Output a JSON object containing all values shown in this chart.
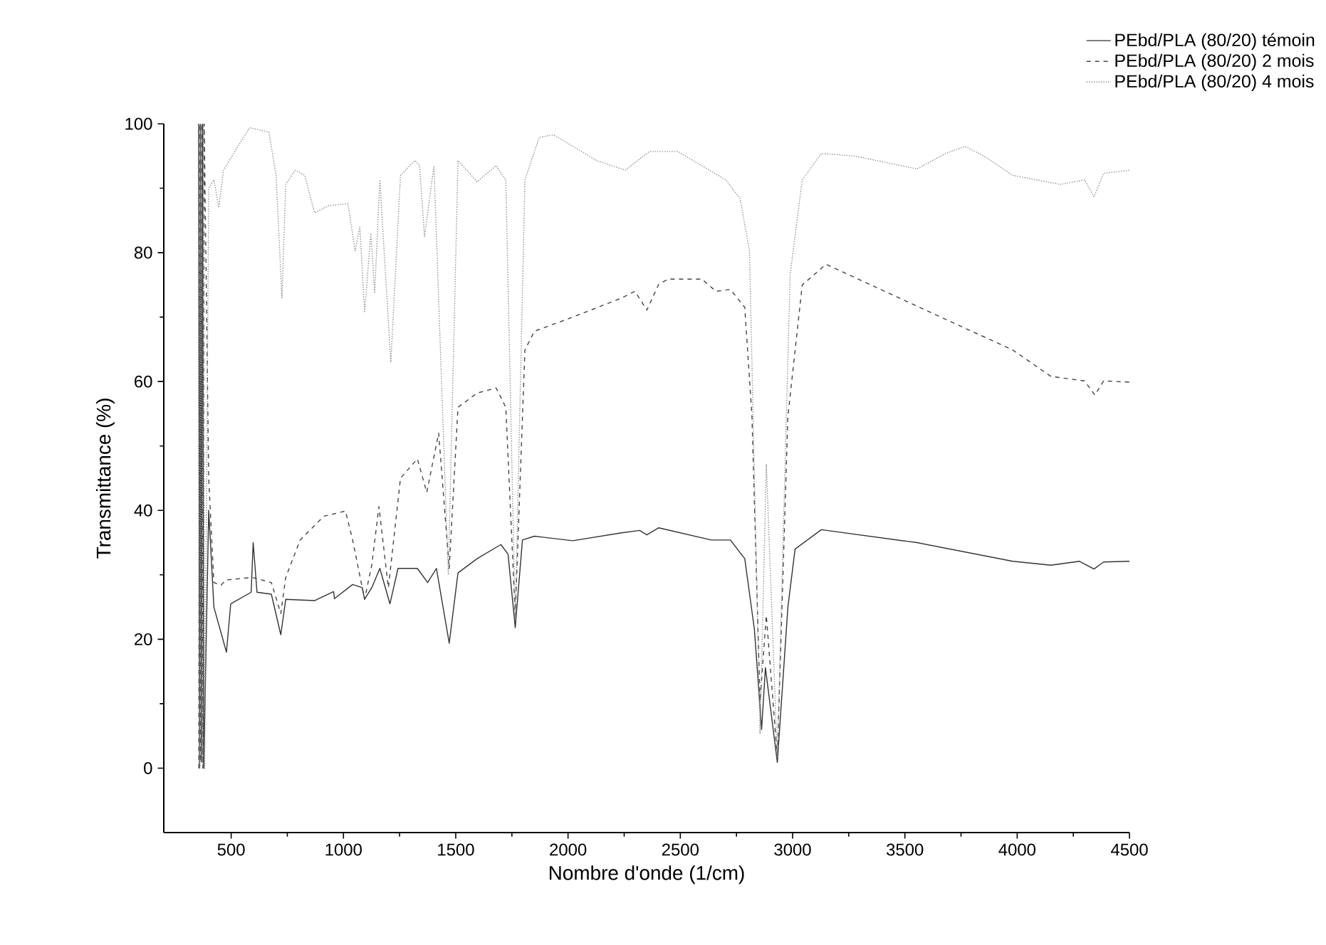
{
  "chart_data": {
    "type": "line",
    "xlabel": "Nombre d'onde (1/cm)",
    "ylabel": "Transmittance (%)",
    "xlim": [
      200,
      4500
    ],
    "ylim": [
      -10,
      100
    ],
    "xticks": [
      500,
      1000,
      1500,
      2000,
      2500,
      3000,
      3500,
      4000,
      4500
    ],
    "yticks": [
      0,
      20,
      40,
      60,
      80,
      100
    ],
    "legend": "top right",
    "grid": false,
    "series": [
      {
        "name": "PEbd/PLA (80/20) témoin",
        "color": "#333333",
        "line_style": "solid",
        "x": [
          355,
          359,
          363,
          367,
          372,
          378,
          400,
          423,
          479,
          498,
          589,
          598,
          615,
          679,
          721,
          743,
          871,
          956,
          960,
          1041,
          1084,
          1094,
          1126,
          1162,
          1207,
          1243,
          1329,
          1375,
          1414,
          1471,
          1510,
          1595,
          1701,
          1733,
          1765,
          1797,
          1850,
          2021,
          2234,
          2319,
          2351,
          2404,
          2638,
          2723,
          2787,
          2830,
          2862,
          2879,
          2932,
          2979,
          3011,
          3128,
          3554,
          3980,
          4150,
          4278,
          4342,
          4385,
          4500
        ],
        "values": [
          100,
          0,
          100,
          1,
          100,
          0,
          40,
          25,
          18,
          25.5,
          27.3,
          35,
          27.3,
          27,
          20.7,
          26.2,
          26,
          27.4,
          26.3,
          28.5,
          28,
          26.2,
          28,
          31,
          25.5,
          31,
          31,
          28.8,
          31,
          19.4,
          30.3,
          32.5,
          34.7,
          33.2,
          21.8,
          35.4,
          36,
          35.3,
          36.5,
          36.9,
          36.2,
          37.3,
          35.4,
          35.4,
          32.5,
          21.5,
          6,
          15.6,
          0.9,
          25,
          34,
          37,
          35,
          32.1,
          31.5,
          32.1,
          30.9,
          32,
          32.1
        ]
      },
      {
        "name": "PEbd/PLA (80/20) 2 mois",
        "color": "#444444",
        "line_style": "dashed",
        "x": [
          356,
          360,
          364,
          369,
          374,
          380,
          400,
          423,
          455,
          477,
          594,
          679,
          721,
          743,
          807,
          913,
          1009,
          1041,
          1094,
          1126,
          1158,
          1200,
          1254,
          1329,
          1371,
          1424,
          1471,
          1510,
          1595,
          1680,
          1723,
          1765,
          1808,
          1850,
          2021,
          2234,
          2298,
          2351,
          2404,
          2446,
          2596,
          2659,
          2723,
          2787,
          2819,
          2855,
          2883,
          2932,
          2979,
          3043,
          3149,
          3341,
          3660,
          3980,
          4150,
          4300,
          4346,
          4385,
          4500
        ],
        "values": [
          0,
          100,
          1,
          100,
          0,
          100,
          45,
          28.8,
          28.4,
          29.2,
          29.6,
          28.8,
          24,
          29.6,
          35.4,
          39.1,
          39.9,
          35.4,
          26.2,
          31.5,
          40.6,
          28,
          45,
          48,
          42.8,
          52,
          31,
          56,
          58.2,
          59,
          56,
          23.7,
          64.9,
          67.8,
          70,
          72.9,
          74,
          71.1,
          75.1,
          75.9,
          75.9,
          74,
          74.3,
          71.5,
          54.6,
          10.4,
          23.7,
          1.6,
          54.6,
          75,
          78.2,
          75.1,
          70,
          64.9,
          60.8,
          60.1,
          57.9,
          60.1,
          59.9
        ]
      },
      {
        "name": "PEbd/PLA (80/20) 4 mois",
        "color": "#8c8c8c",
        "line_style": "dotted",
        "x": [
          357,
          361,
          365,
          370,
          376,
          382,
          400,
          423,
          445,
          466,
          530,
          583,
          668,
          700,
          726,
          743,
          785,
          828,
          871,
          935,
          1020,
          1052,
          1073,
          1094,
          1122,
          1139,
          1162,
          1211,
          1254,
          1318,
          1339,
          1361,
          1403,
          1467,
          1510,
          1595,
          1680,
          1723,
          1765,
          1808,
          1872,
          1936,
          2127,
          2255,
          2362,
          2489,
          2596,
          2702,
          2766,
          2808,
          2855,
          2883,
          2932,
          2989,
          3043,
          3128,
          3277,
          3554,
          3682,
          3767,
          3852,
          3980,
          4193,
          4300,
          4342,
          4385,
          4500
        ],
        "values": [
          100,
          0,
          100,
          1,
          100,
          0,
          90,
          91.3,
          87,
          92.8,
          96.5,
          99.4,
          98.7,
          92,
          73,
          90.6,
          92.8,
          92,
          86.2,
          87.3,
          87.6,
          80.3,
          84,
          70.7,
          83,
          73.7,
          91.3,
          63,
          92,
          94.3,
          93.5,
          82.5,
          93.5,
          30,
          94.3,
          91,
          93.5,
          91.3,
          23,
          91.3,
          97.9,
          98.3,
          94.3,
          92.8,
          95.7,
          95.7,
          93.5,
          91.3,
          88.4,
          80.3,
          5.3,
          47.2,
          1.6,
          76.6,
          91.3,
          95.4,
          95,
          93,
          95.4,
          96.5,
          95,
          92,
          90.6,
          91.3,
          88.7,
          92.3,
          92.8
        ]
      }
    ]
  }
}
